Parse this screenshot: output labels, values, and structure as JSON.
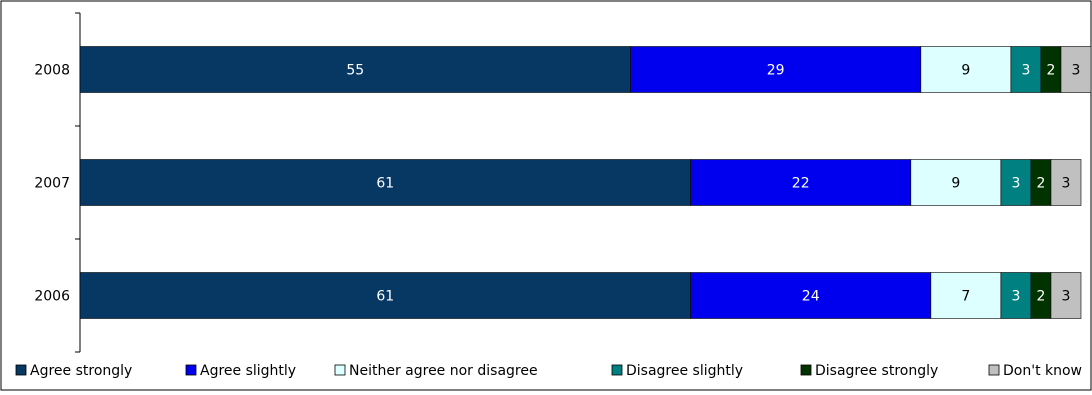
{
  "chart_data": {
    "type": "bar",
    "orientation": "horizontal",
    "stacked": true,
    "categories": [
      "2008",
      "2007",
      "2006"
    ],
    "series": [
      {
        "name": "Agree strongly",
        "color": "#073763",
        "label_color": "#ffffff",
        "values": [
          55,
          61,
          61
        ]
      },
      {
        "name": "Agree slightly",
        "color": "#0000ee",
        "label_color": "#ffffff",
        "values": [
          29,
          22,
          24
        ]
      },
      {
        "name": "Neither agree nor disagree",
        "color": "#ddffff",
        "label_color": "#000000",
        "values": [
          9,
          9,
          7
        ]
      },
      {
        "name": "Disagree slightly",
        "color": "#008080",
        "label_color": "#ffffff",
        "values": [
          3,
          3,
          3
        ]
      },
      {
        "name": "Disagree strongly",
        "color": "#003300",
        "label_color": "#ffffff",
        "values": [
          2,
          2,
          2
        ]
      },
      {
        "name": "Don't know",
        "color": "#c0c0c0",
        "label_color": "#000000",
        "values": [
          3,
          3,
          3
        ]
      }
    ],
    "xlim": [
      0,
      101
    ],
    "grid": false,
    "legend_position": "bottom"
  }
}
